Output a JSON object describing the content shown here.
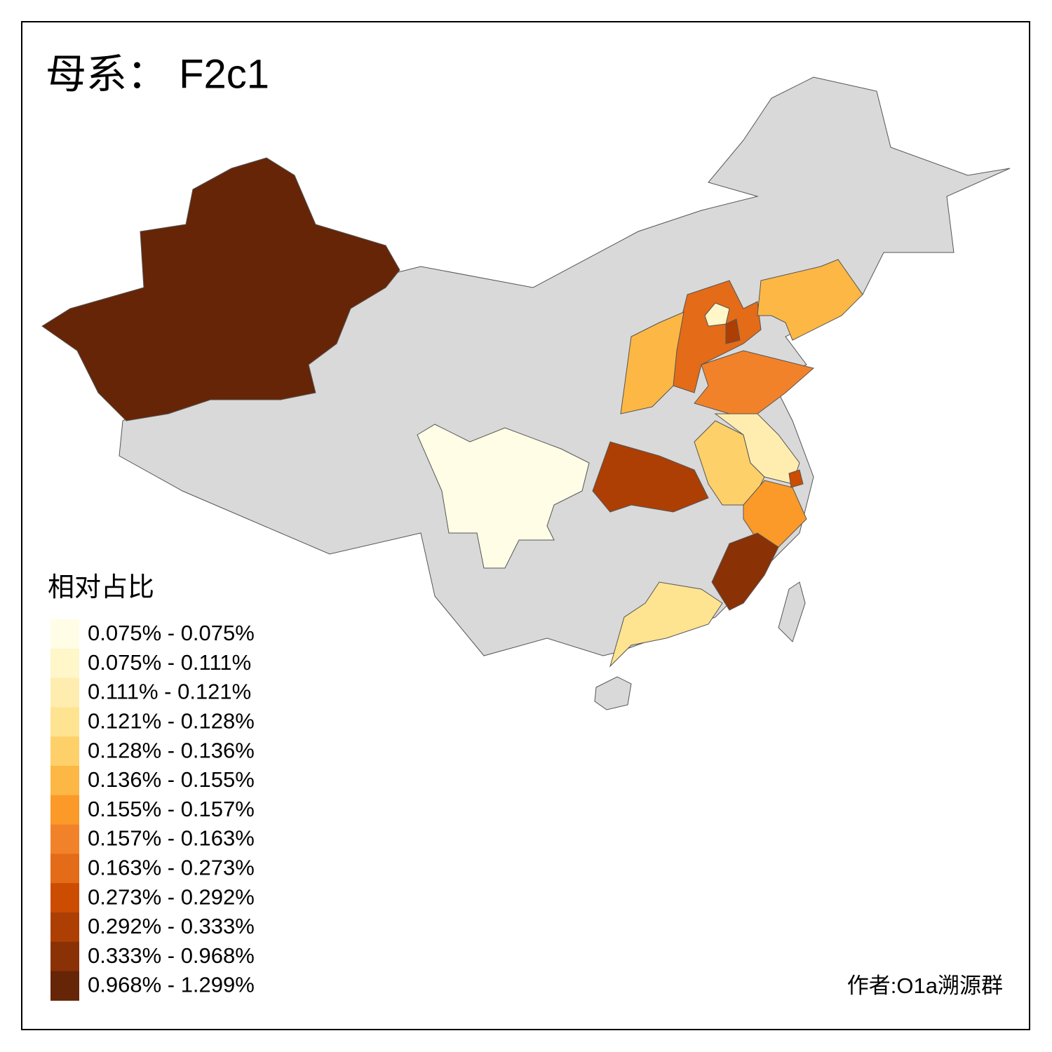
{
  "title": "母系： F2c1",
  "legend": {
    "title": "相对占比",
    "items": [
      {
        "label": "0.075% - 0.075%",
        "color": "#fffde6"
      },
      {
        "label": "0.075% - 0.111%",
        "color": "#fff6c9"
      },
      {
        "label": "0.111% - 0.121%",
        "color": "#ffedb0"
      },
      {
        "label": "0.121% - 0.128%",
        "color": "#fee391"
      },
      {
        "label": "0.128% - 0.136%",
        "color": "#fed06a"
      },
      {
        "label": "0.136% - 0.155%",
        "color": "#fdb744"
      },
      {
        "label": "0.155% - 0.157%",
        "color": "#fb9a29"
      },
      {
        "label": "0.157% - 0.163%",
        "color": "#f2822a"
      },
      {
        "label": "0.163% - 0.273%",
        "color": "#e46b17"
      },
      {
        "label": "0.273% - 0.292%",
        "color": "#cc4c02"
      },
      {
        "label": "0.292% - 0.333%",
        "color": "#ad3f05"
      },
      {
        "label": "0.333% - 0.968%",
        "color": "#8a3106"
      },
      {
        "label": "0.968% - 1.299%",
        "color": "#662506"
      }
    ]
  },
  "credit": "作者:O1a溯源群"
}
